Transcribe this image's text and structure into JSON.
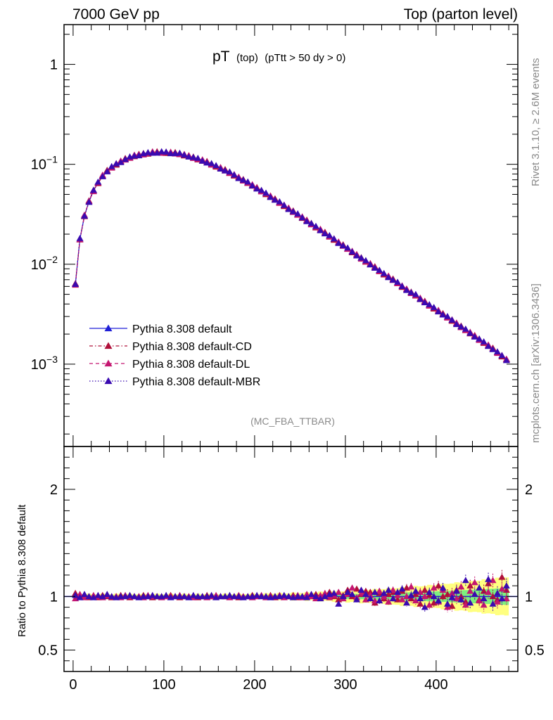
{
  "header": {
    "left": "7000 GeV pp",
    "right": "Top (parton level)"
  },
  "side_labels": {
    "top": "Rivet 3.1.10, ≥ 2.6M events",
    "bottom": "mcplots.cern.ch [arXiv:1306.3436]"
  },
  "chart_data": [
    {
      "type": "line",
      "panel": "main",
      "title_main": "pT",
      "title_sub1": "(top)",
      "title_sub2": "(pTtt > 50 dy > 0)",
      "watermark": "(MC_FBA_TTBAR)",
      "xlim": [
        -10,
        490
      ],
      "ylim": [
        0.00015,
        2.5
      ],
      "yscale": "log",
      "ytick_labels": [
        {
          "value": 1,
          "base": "1",
          "exp": ""
        },
        {
          "value": 0.1,
          "base": "10",
          "exp": "−1"
        },
        {
          "value": 0.01,
          "base": "10",
          "exp": "−2"
        },
        {
          "value": 0.001,
          "base": "10",
          "exp": "−3"
        }
      ],
      "legend_position": "lower-left",
      "series": [
        {
          "name": "Pythia 8.308 default",
          "color": "#1f1fd6",
          "dash": "",
          "marker": "triangle"
        },
        {
          "name": "Pythia 8.308 default-CD",
          "color": "#b0103a",
          "dash": "5,3,1.5,3",
          "marker": "triangle"
        },
        {
          "name": "Pythia 8.308 default-DL",
          "color": "#c41670",
          "dash": "5,4",
          "marker": "triangle"
        },
        {
          "name": "Pythia 8.308 default-MBR",
          "color": "#3a0ab0",
          "dash": "1.5,2.5",
          "marker": "triangle"
        }
      ],
      "x": [
        2.5,
        7.5,
        12.5,
        17.5,
        22.5,
        27.5,
        32.5,
        37.5,
        42.5,
        47.5,
        52.5,
        57.5,
        62.5,
        67.5,
        72.5,
        77.5,
        82.5,
        87.5,
        92.5,
        97.5,
        102.5,
        107.5,
        112.5,
        117.5,
        122.5,
        127.5,
        132.5,
        137.5,
        142.5,
        147.5,
        152.5,
        157.5,
        162.5,
        167.5,
        172.5,
        177.5,
        182.5,
        187.5,
        192.5,
        197.5,
        202.5,
        207.5,
        212.5,
        217.5,
        222.5,
        227.5,
        232.5,
        237.5,
        242.5,
        247.5,
        252.5,
        257.5,
        262.5,
        267.5,
        272.5,
        277.5,
        282.5,
        287.5,
        292.5,
        297.5,
        302.5,
        307.5,
        312.5,
        317.5,
        322.5,
        327.5,
        332.5,
        337.5,
        342.5,
        347.5,
        352.5,
        357.5,
        362.5,
        367.5,
        372.5,
        377.5,
        382.5,
        387.5,
        392.5,
        397.5,
        402.5,
        407.5,
        412.5,
        417.5,
        422.5,
        427.5,
        432.5,
        437.5,
        442.5,
        447.5,
        452.5,
        457.5,
        462.5,
        467.5,
        472.5,
        477.5
      ],
      "values_default": [
        0.0063,
        0.0178,
        0.0305,
        0.0425,
        0.0545,
        0.0655,
        0.0765,
        0.0855,
        0.0935,
        0.1005,
        0.1065,
        0.1125,
        0.1165,
        0.1215,
        0.1245,
        0.127,
        0.129,
        0.131,
        0.1315,
        0.132,
        0.1315,
        0.1305,
        0.129,
        0.127,
        0.124,
        0.121,
        0.117,
        0.113,
        0.109,
        0.105,
        0.1005,
        0.096,
        0.0915,
        0.087,
        0.0825,
        0.078,
        0.0737,
        0.0695,
        0.0655,
        0.0615,
        0.0578,
        0.0543,
        0.0508,
        0.0475,
        0.0444,
        0.0415,
        0.0387,
        0.0361,
        0.0337,
        0.0314,
        0.0293,
        0.0273,
        0.0254,
        0.0236,
        0.022,
        0.0205,
        0.0191,
        0.0178,
        0.0165,
        0.0154,
        0.0143,
        0.0133,
        0.0124,
        0.0115,
        0.0107,
        0.01,
        0.0093,
        0.0086,
        0.008,
        0.0075,
        0.007,
        0.0065,
        0.006,
        0.0056,
        0.0052,
        0.0049,
        0.0045,
        0.0042,
        0.0039,
        0.00365,
        0.0034,
        0.00315,
        0.00295,
        0.00275,
        0.00255,
        0.00237,
        0.0022,
        0.00205,
        0.00191,
        0.00177,
        0.00165,
        0.00153,
        0.00142,
        0.00131,
        0.00121,
        0.00111
      ]
    },
    {
      "type": "line",
      "panel": "ratio",
      "ylabel": "Ratio to Pythia 8.308 default",
      "xlim": [
        -10,
        490
      ],
      "ylim": [
        0.3,
        2.4
      ],
      "yticks": [
        0.5,
        1,
        2
      ],
      "ytick_labels": [
        "0.5",
        "1",
        "2"
      ],
      "xticks": [
        0,
        100,
        200,
        300,
        400
      ],
      "xtick_labels": [
        "0",
        "100",
        "200",
        "300",
        "400"
      ],
      "band_inner_color": "#7ef07e",
      "band_outer_color": "#ffff80",
      "ratio_series": [
        {
          "name": "Pythia 8.308 default-CD",
          "color": "#b0103a",
          "values": [
            1.03,
            1.0,
            1.01,
            0.99,
            1.0,
            0.99,
            1.01,
            1.0,
            0.99,
            1.0,
            1.01,
            1.0,
            0.99,
            1.0,
            1.0,
            1.01,
            1.0,
            0.99,
            1.0,
            1.0,
            1.0,
            1.01,
            1.0,
            0.99,
            1.0,
            1.0,
            1.0,
            0.99,
            1.0,
            1.01,
            1.0,
            1.0,
            1.0,
            1.0,
            1.0,
            1.0,
            0.99,
            1.0,
            1.0,
            1.01,
            1.0,
            1.0,
            1.0,
            1.01,
            0.99,
            1.0,
            1.0,
            1.0,
            1.01,
            0.99,
            1.0,
            1.0,
            1.01,
            1.02,
            0.99,
            1.0,
            1.04,
            1.0,
            0.97,
            1.01,
            1.06,
            1.0,
            1.07,
            1.02,
            1.05,
            1.04,
            0.94,
            1.03,
            0.98,
            1.02,
            1.04,
            0.97,
            1.05,
            1.08,
            0.98,
            1.02,
            0.93,
            1.06,
            1.01,
            0.94,
            1.1,
            1.0,
            1.02,
            0.91,
            1.06,
            1.0,
            0.95,
            1.1,
            1.02,
            0.97,
            1.05,
            1.12,
            1.0,
            0.97,
            1.18,
            1.06
          ]
        },
        {
          "name": "Pythia 8.308 default-DL",
          "color": "#c41670",
          "values": [
            0.98,
            1.02,
            0.99,
            1.0,
            1.01,
            1.0,
            0.99,
            1.01,
            1.0,
            1.0,
            0.99,
            1.01,
            1.0,
            1.0,
            1.0,
            0.99,
            1.01,
            1.0,
            1.0,
            0.99,
            1.0,
            1.0,
            1.0,
            1.01,
            1.0,
            1.0,
            0.99,
            1.0,
            1.0,
            0.99,
            1.0,
            1.01,
            1.0,
            1.0,
            0.99,
            1.0,
            1.01,
            1.0,
            1.0,
            0.99,
            1.0,
            1.01,
            0.99,
            1.0,
            1.0,
            1.01,
            0.99,
            1.0,
            1.0,
            1.01,
            0.99,
            1.02,
            1.0,
            0.98,
            1.01,
            1.03,
            0.99,
            1.01,
            1.04,
            0.98,
            1.02,
            1.08,
            0.99,
            1.03,
            0.97,
            1.01,
            0.96,
            1.05,
            1.0,
            0.95,
            1.06,
            1.01,
            0.97,
            1.0,
            1.09,
            0.96,
            1.04,
            1.0,
            0.92,
            1.08,
            0.95,
            1.06,
            0.9,
            1.03,
            0.98,
            1.09,
            0.92,
            1.05,
            1.13,
            0.96,
            0.92,
            1.04,
            1.15,
            0.95,
            1.07,
            0.98
          ]
        },
        {
          "name": "Pythia 8.308 default-MBR",
          "color": "#3a0ab0",
          "values": [
            1.01,
            0.99,
            1.02,
            1.0,
            0.99,
            1.01,
            1.0,
            1.02,
            1.0,
            0.99,
            1.0,
            1.0,
            1.01,
            1.0,
            0.99,
            1.0,
            1.0,
            1.01,
            1.0,
            1.0,
            1.01,
            0.99,
            1.0,
            1.0,
            1.0,
            0.99,
            1.01,
            1.0,
            1.0,
            1.0,
            1.01,
            0.99,
            1.0,
            1.0,
            1.01,
            1.0,
            1.0,
            0.99,
            1.0,
            1.0,
            1.01,
            1.0,
            1.0,
            0.99,
            1.0,
            1.0,
            1.01,
            1.0,
            0.99,
            1.0,
            1.0,
            0.99,
            1.02,
            1.0,
            0.98,
            1.0,
            1.02,
            1.03,
            0.93,
            1.0,
            1.04,
            1.02,
            0.97,
            1.06,
            1.02,
            0.98,
            1.04,
            0.96,
            1.03,
            1.06,
            0.98,
            1.04,
            1.07,
            0.94,
            1.01,
            1.05,
            0.98,
            0.9,
            1.04,
            1.0,
            0.96,
            1.08,
            0.93,
            0.99,
            1.05,
            0.97,
            1.15,
            0.94,
            1.02,
            1.08,
            0.98,
            1.16,
            0.93,
            1.03,
            0.98,
            1.1
          ]
        }
      ]
    }
  ]
}
